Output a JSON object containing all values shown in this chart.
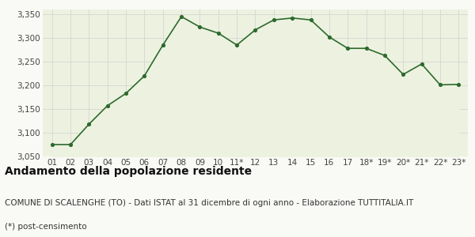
{
  "x_labels": [
    "01",
    "02",
    "03",
    "04",
    "05",
    "06",
    "07",
    "08",
    "09",
    "10",
    "11*",
    "12",
    "13",
    "14",
    "15",
    "16",
    "17",
    "18*",
    "19*",
    "20*",
    "21*",
    "22*",
    "23*"
  ],
  "y_values": [
    3075,
    3075,
    3118,
    3157,
    3183,
    3220,
    3285,
    3345,
    3323,
    3310,
    3285,
    3317,
    3338,
    3342,
    3338,
    3302,
    3278,
    3278,
    3263,
    3223,
    3245,
    3201,
    3202
  ],
  "line_color": "#2d6a2d",
  "fill_color": "#edf2e0",
  "marker_color": "#2d6a2d",
  "background_color": "#f9f9f6",
  "grid_color": "#d0d0d0",
  "ylim": [
    3050,
    3360
  ],
  "yticks": [
    3050,
    3100,
    3150,
    3200,
    3250,
    3300,
    3350
  ],
  "title": "Andamento della popolazione residente",
  "subtitle": "COMUNE DI SCALENGHE (TO) - Dati ISTAT al 31 dicembre di ogni anno - Elaborazione TUTTITALIA.IT",
  "footnote": "(*) post-censimento",
  "title_fontsize": 10,
  "subtitle_fontsize": 7.5,
  "footnote_fontsize": 7.5,
  "tick_fontsize": 7.5
}
